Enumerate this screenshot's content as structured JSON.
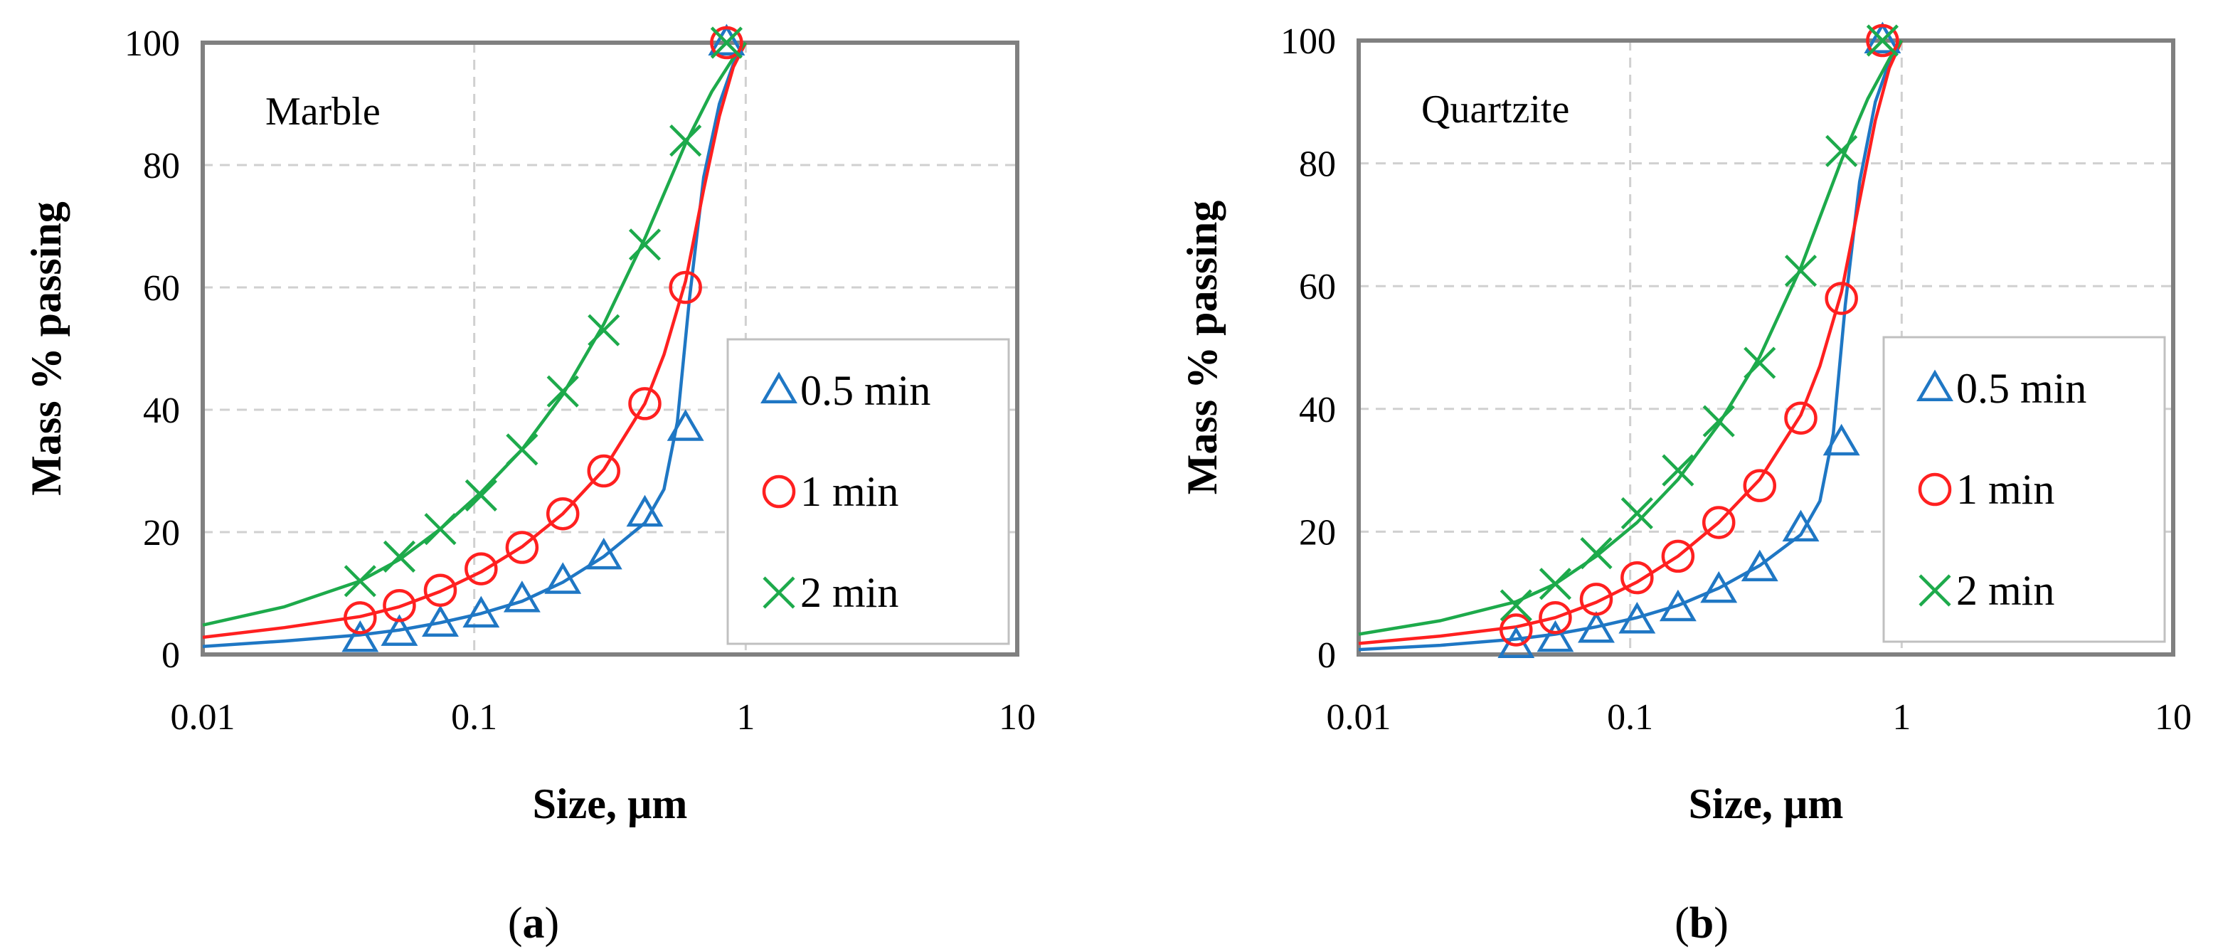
{
  "chart_data": [
    {
      "type": "line",
      "panel_label": "(a)",
      "panel_label_letter": "a",
      "annotation": "Marble",
      "xlabel": "Size, µm",
      "ylabel": "Mass % passing",
      "xscale": "log",
      "xlim": [
        0.01,
        10
      ],
      "ylim": [
        0,
        100
      ],
      "x_ticks": [
        0.01,
        0.1,
        1,
        10
      ],
      "x_tick_labels": [
        "0.01",
        "0.1",
        "1",
        "10"
      ],
      "y_ticks": [
        0,
        20,
        40,
        60,
        80,
        100
      ],
      "y_tick_labels": [
        "0",
        "20",
        "40",
        "60",
        "80",
        "100"
      ],
      "grid": true,
      "legend_position": "lower-right",
      "x": [
        0.038,
        0.053,
        0.075,
        0.106,
        0.15,
        0.212,
        0.3,
        0.425,
        0.6,
        0.85
      ],
      "series": [
        {
          "name": "0.5 min",
          "marker": "triangle",
          "color": "#1F77C4",
          "values": [
            2.5,
            3.5,
            5,
            6.5,
            9,
            12,
            16,
            23,
            37,
            100
          ],
          "fit_x": [
            0.01,
            0.02,
            0.038,
            0.053,
            0.075,
            0.106,
            0.15,
            0.212,
            0.3,
            0.425,
            0.5,
            0.56,
            0.62,
            0.7,
            0.8,
            0.9,
            1.0
          ],
          "fit_y": [
            1.3,
            2.2,
            3.2,
            4.0,
            5.2,
            6.7,
            8.7,
            11.8,
            16.0,
            21.5,
            27.0,
            38.0,
            58.0,
            78.0,
            90.0,
            96.5,
            100
          ]
        },
        {
          "name": "1 min",
          "marker": "circle",
          "color": "#FF2020",
          "values": [
            6,
            8,
            10.5,
            14,
            17.5,
            23,
            30,
            41,
            60,
            100
          ],
          "fit_x": [
            0.01,
            0.02,
            0.038,
            0.053,
            0.075,
            0.106,
            0.15,
            0.212,
            0.3,
            0.425,
            0.5,
            0.6,
            0.7,
            0.8,
            0.9,
            1.0
          ],
          "fit_y": [
            2.8,
            4.4,
            6.2,
            7.8,
            10.3,
            13.5,
            17.6,
            23.0,
            30.2,
            41.0,
            49.0,
            61.0,
            76.0,
            88.0,
            96.0,
            100
          ]
        },
        {
          "name": "2 min",
          "marker": "x",
          "color": "#1DAA4B",
          "values": [
            12,
            16,
            20.5,
            26,
            33.5,
            43,
            53,
            67,
            84,
            100
          ],
          "fit_x": [
            0.01,
            0.02,
            0.038,
            0.053,
            0.075,
            0.106,
            0.15,
            0.212,
            0.3,
            0.425,
            0.6,
            0.75,
            0.9,
            1.0
          ],
          "fit_y": [
            4.8,
            7.8,
            12.0,
            15.5,
            20.5,
            26.5,
            33.5,
            42.5,
            54.0,
            68.0,
            83.5,
            92.0,
            97.5,
            100
          ]
        }
      ]
    },
    {
      "type": "line",
      "panel_label": "(b)",
      "panel_label_letter": "b",
      "annotation": "Quartzite",
      "xlabel": "Size, µm",
      "ylabel": "Mass % passing",
      "xscale": "log",
      "xlim": [
        0.01,
        10
      ],
      "ylim": [
        0,
        100
      ],
      "x_ticks": [
        0.01,
        0.1,
        1,
        10
      ],
      "x_tick_labels": [
        "0.01",
        "0.1",
        "1",
        "10"
      ],
      "y_ticks": [
        0,
        20,
        40,
        60,
        80,
        100
      ],
      "y_tick_labels": [
        "0",
        "20",
        "40",
        "60",
        "80",
        "100"
      ],
      "grid": true,
      "legend_position": "lower-right",
      "x": [
        0.038,
        0.053,
        0.075,
        0.106,
        0.15,
        0.212,
        0.3,
        0.425,
        0.6,
        0.85
      ],
      "series": [
        {
          "name": "0.5 min",
          "marker": "triangle",
          "color": "#1F77C4",
          "values": [
            1.5,
            2.5,
            4,
            5.5,
            7.5,
            10.5,
            14,
            20.5,
            34.5,
            100
          ],
          "fit_x": [
            0.01,
            0.02,
            0.038,
            0.053,
            0.075,
            0.106,
            0.15,
            0.212,
            0.3,
            0.425,
            0.5,
            0.56,
            0.62,
            0.7,
            0.8,
            0.9,
            1.0
          ],
          "fit_y": [
            0.8,
            1.5,
            2.5,
            3.3,
            4.5,
            6.0,
            8.0,
            10.8,
            14.5,
            19.5,
            25.0,
            36.0,
            57.0,
            77.0,
            90.0,
            96.5,
            100
          ]
        },
        {
          "name": "1 min",
          "marker": "circle",
          "color": "#FF2020",
          "values": [
            4,
            6,
            9,
            12.5,
            16,
            21.5,
            27.5,
            38.5,
            58,
            100
          ],
          "fit_x": [
            0.01,
            0.02,
            0.038,
            0.053,
            0.075,
            0.106,
            0.15,
            0.212,
            0.3,
            0.425,
            0.5,
            0.6,
            0.7,
            0.8,
            0.9,
            1.0
          ],
          "fit_y": [
            1.8,
            3.0,
            4.5,
            6.0,
            8.5,
            11.8,
            16.0,
            21.5,
            28.5,
            39.0,
            47.0,
            59.0,
            74.0,
            87.0,
            95.5,
            100
          ]
        },
        {
          "name": "2 min",
          "marker": "x",
          "color": "#1DAA4B",
          "values": [
            8,
            11.5,
            16.5,
            23,
            30,
            38,
            47.5,
            62.5,
            82,
            100
          ],
          "fit_x": [
            0.01,
            0.02,
            0.038,
            0.053,
            0.075,
            0.106,
            0.15,
            0.212,
            0.3,
            0.425,
            0.6,
            0.75,
            0.9,
            1.0
          ],
          "fit_y": [
            3.3,
            5.5,
            8.6,
            11.5,
            16.0,
            21.5,
            28.5,
            37.5,
            48.5,
            63.0,
            80.5,
            90.5,
            97.0,
            100
          ]
        }
      ]
    }
  ]
}
